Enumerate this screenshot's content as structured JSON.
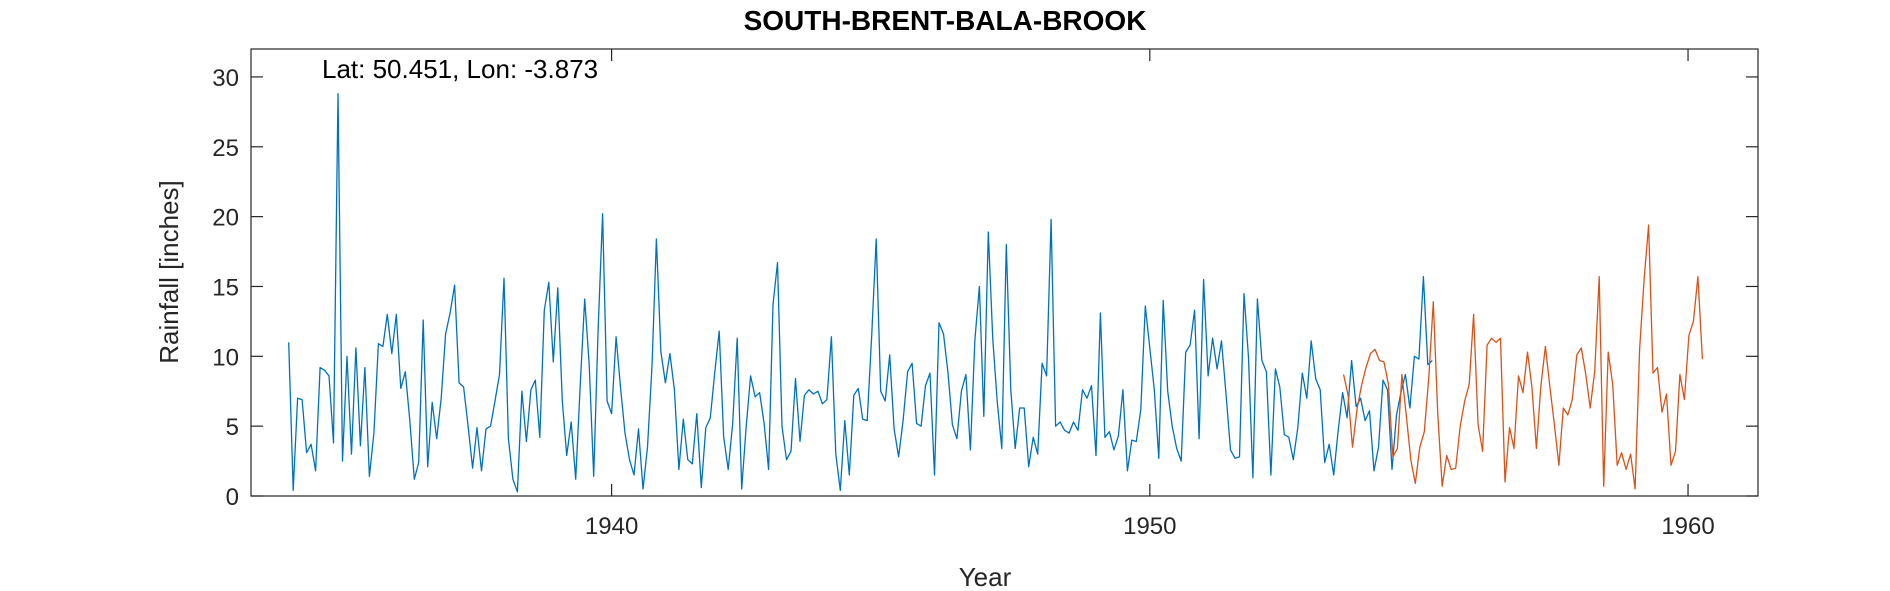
{
  "chart_data": {
    "type": "line",
    "title": "SOUTH-BRENT-BALA-BROOK",
    "xlabel": "Year",
    "ylabel": "Rainfall [inches]",
    "annotation": "Lat: 50.451, Lon: -3.873",
    "xlim": [
      1933.3,
      1961.3
    ],
    "ylim": [
      0,
      32
    ],
    "xticks": [
      1940,
      1950,
      1960
    ],
    "yticks": [
      0,
      5,
      10,
      15,
      20,
      25,
      30
    ],
    "grid": false,
    "colors": {
      "observed": "#0072BD",
      "predicted": "#D95319",
      "axis": "#262626"
    },
    "series": [
      {
        "color": "#0072BD",
        "x_start": 1934.0,
        "x_step": 0.08333,
        "values": [
          11.0,
          0.4,
          7.0,
          6.9,
          3.1,
          3.7,
          1.8,
          9.2,
          9.0,
          8.6,
          3.8,
          28.8,
          2.5,
          10.0,
          3.0,
          10.6,
          3.6,
          9.2,
          1.4,
          4.5,
          10.9,
          10.7,
          13.0,
          10.2,
          13.0,
          7.7,
          8.9,
          5.4,
          1.2,
          2.4,
          12.6,
          2.1,
          6.7,
          4.1,
          7.0,
          11.6,
          13.1,
          15.1,
          8.1,
          7.8,
          5.0,
          2.0,
          4.9,
          1.8,
          4.8,
          5.0,
          6.8,
          8.7,
          15.6,
          4.1,
          1.2,
          0.3,
          7.5,
          3.9,
          7.6,
          8.3,
          4.2,
          13.3,
          15.3,
          9.6,
          14.9,
          6.8,
          2.9,
          5.3,
          1.2,
          7.9,
          14.1,
          9.4,
          1.4,
          11.9,
          20.2,
          6.8,
          5.9,
          11.4,
          7.7,
          4.5,
          2.6,
          1.5,
          4.8,
          0.5,
          3.5,
          9.3,
          18.4,
          10.3,
          8.1,
          10.2,
          7.6,
          1.9,
          5.5,
          2.6,
          2.3,
          5.9,
          0.6,
          4.9,
          5.6,
          8.8,
          11.8,
          4.2,
          1.9,
          5.2,
          11.3,
          0.5,
          4.9,
          8.6,
          7.1,
          7.4,
          5.2,
          1.9,
          13.7,
          16.7,
          5.0,
          2.6,
          3.2,
          8.4,
          3.9,
          7.2,
          7.6,
          7.3,
          7.5,
          6.6,
          6.9,
          11.4,
          3.0,
          0.4,
          5.4,
          1.5,
          7.2,
          7.7,
          5.5,
          5.4,
          11.5,
          18.4,
          7.5,
          6.8,
          10.1,
          4.8,
          2.8,
          5.4,
          8.9,
          9.5,
          5.2,
          5.0,
          7.9,
          8.8,
          1.5,
          12.4,
          11.6,
          8.8,
          5.1,
          4.1,
          7.5,
          8.7,
          3.3,
          11.2,
          15.0,
          5.7,
          18.9,
          11.2,
          6.7,
          3.4,
          18.0,
          7.6,
          3.4,
          6.3,
          6.3,
          2.1,
          4.2,
          3.0,
          9.5,
          8.6,
          19.8,
          5.0,
          5.3,
          4.7,
          4.5,
          5.3,
          4.7,
          7.6,
          7.0,
          7.9,
          2.9,
          13.1,
          4.2,
          4.6,
          3.3,
          4.3,
          7.6,
          1.8,
          4.0,
          3.9,
          6.2,
          13.6,
          10.6,
          7.6,
          2.7,
          14.0,
          7.5,
          5.0,
          3.4,
          2.5,
          10.3,
          10.8,
          13.3,
          4.1,
          15.5,
          8.6,
          11.3,
          9.1,
          11.1,
          7.3,
          3.3,
          2.7,
          2.8,
          14.5,
          9.9,
          1.3,
          14.1,
          9.7,
          8.9,
          1.5,
          9.1,
          7.8,
          4.4,
          4.2,
          2.6,
          4.9,
          8.8,
          7.0,
          11.1,
          8.4,
          7.6,
          2.4,
          3.7,
          1.5,
          4.7,
          7.4,
          5.6,
          9.7,
          6.4,
          7.0,
          5.4,
          6.1,
          1.8,
          3.5,
          8.3,
          7.6,
          1.9,
          5.8,
          7.4,
          8.7,
          6.3,
          10.0,
          9.8,
          15.7,
          9.4,
          9.7
        ]
      },
      {
        "color": "#D95319",
        "x_start": 1953.6,
        "x_step": 0.08333,
        "values": [
          8.7,
          7.2,
          3.5,
          6.2,
          7.9,
          9.2,
          10.2,
          10.5,
          9.7,
          9.6,
          8.0,
          2.8,
          3.4,
          8.7,
          5.7,
          2.6,
          0.9,
          3.5,
          4.6,
          8.5,
          13.9,
          5.8,
          0.7,
          2.9,
          1.9,
          2.0,
          5.0,
          6.8,
          8.0,
          13.0,
          5.1,
          3.2,
          10.8,
          11.3,
          11.0,
          11.3,
          1.0,
          4.9,
          3.4,
          8.6,
          7.4,
          10.3,
          7.8,
          3.4,
          7.9,
          10.7,
          7.8,
          5.1,
          2.2,
          6.3,
          5.8,
          6.9,
          10.1,
          10.6,
          8.7,
          6.3,
          8.9,
          15.7,
          0.7,
          10.3,
          8.0,
          2.2,
          3.1,
          1.9,
          3.0,
          0.5,
          10.5,
          15.5,
          19.4,
          8.8,
          9.2,
          6.0,
          7.3,
          2.2,
          3.2,
          8.7,
          6.9,
          11.5,
          12.5,
          15.7,
          9.8
        ]
      }
    ]
  }
}
